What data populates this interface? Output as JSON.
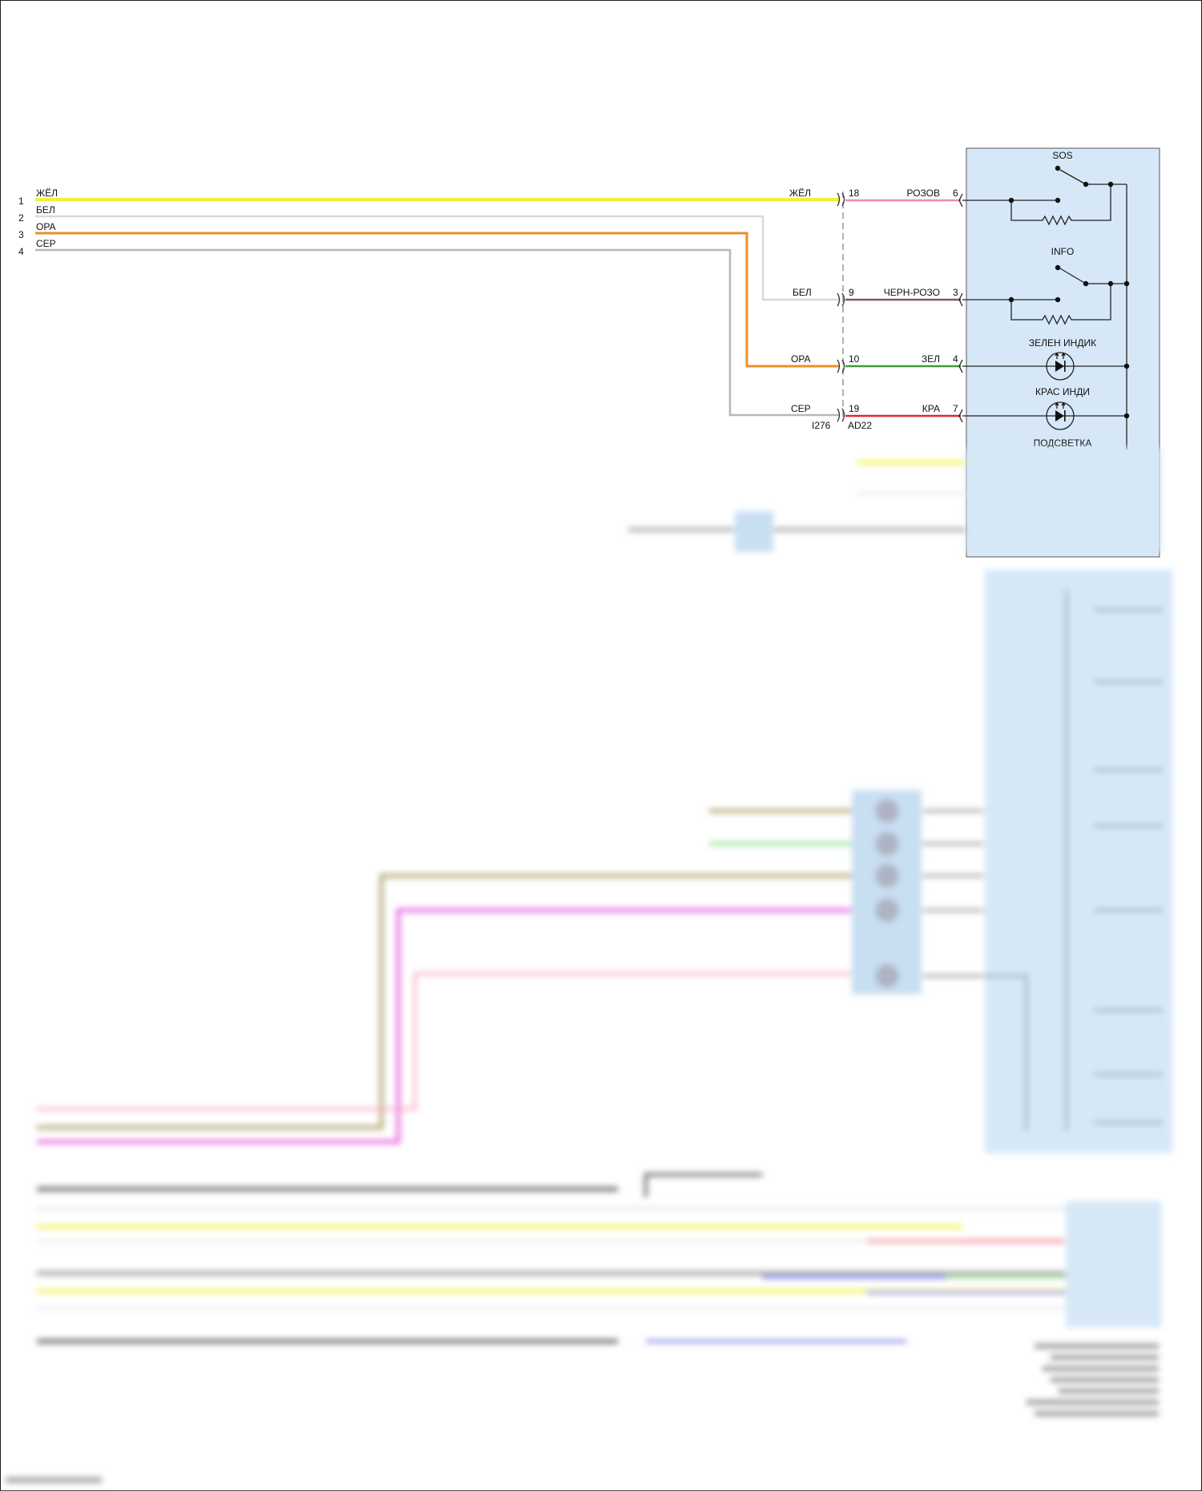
{
  "left_pins": [
    {
      "num": "1",
      "color_label": "ЖЁЛ",
      "color": "#f2f03a"
    },
    {
      "num": "2",
      "color_label": "БЕЛ",
      "color": "#d8d8d8"
    },
    {
      "num": "3",
      "color_label": "ОРА",
      "color": "#e8902a"
    },
    {
      "num": "4",
      "color_label": "СЕР",
      "color": "#b0b0b0"
    }
  ],
  "connector_left": {
    "id": "I276",
    "wires": [
      {
        "label": "ЖЁЛ",
        "pin": "18"
      },
      {
        "label": "БЕЛ",
        "pin": "9"
      },
      {
        "label": "ОРА",
        "pin": "10"
      },
      {
        "label": "СЕР",
        "pin": "19"
      }
    ]
  },
  "connector_right": {
    "id": "AD22"
  },
  "module_wires": [
    {
      "label": "РОЗОВ",
      "pin": "6",
      "color": "#e890a8"
    },
    {
      "label": "ЧЕРН-РОЗО",
      "pin": "3",
      "color": "#7a5a60"
    },
    {
      "label": "ЗЕЛ",
      "pin": "4",
      "color": "#3aa030"
    },
    {
      "label": "КРА",
      "pin": "7",
      "color": "#e02828"
    }
  ],
  "module": {
    "fill": "#d6e8f8",
    "sos_label": "SOS",
    "info_label": "INFO",
    "green_led_label": "ЗЕЛЕН ИНДИК",
    "red_led_label": "КРАС ИНДИ",
    "backlight_label": "ПОДСВЕТКА"
  }
}
